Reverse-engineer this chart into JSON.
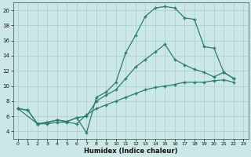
{
  "xlabel": "Humidex (Indice chaleur)",
  "bg_color": "#cce8e6",
  "line_color": "#2e7d6e",
  "grid_color": "#a8ceca",
  "xlim": [
    -0.5,
    23.5
  ],
  "ylim": [
    3,
    21
  ],
  "xticks": [
    0,
    1,
    2,
    3,
    4,
    5,
    6,
    7,
    8,
    9,
    10,
    11,
    12,
    13,
    14,
    15,
    16,
    17,
    18,
    19,
    20,
    21,
    22,
    23
  ],
  "yticks": [
    4,
    6,
    8,
    10,
    12,
    14,
    16,
    18,
    20
  ],
  "curve1_x": [
    0,
    1,
    2,
    3,
    4,
    5,
    6,
    7,
    8,
    9,
    10,
    11,
    12,
    13,
    14,
    15,
    16,
    17,
    18,
    19,
    20,
    21,
    22
  ],
  "curve1_y": [
    7.0,
    6.8,
    5.0,
    5.2,
    5.5,
    5.3,
    5.8,
    3.8,
    8.5,
    9.2,
    10.5,
    14.4,
    16.7,
    19.2,
    20.3,
    20.5,
    20.3,
    19.0,
    18.8,
    15.2,
    15.0,
    11.8,
    11.0
  ],
  "curve2_x": [
    0,
    2,
    3,
    4,
    5,
    6,
    7,
    8,
    9,
    10,
    11,
    12,
    13,
    14,
    15,
    16,
    17,
    18,
    19,
    20,
    21,
    22
  ],
  "curve2_y": [
    7.0,
    5.0,
    5.2,
    5.5,
    5.3,
    5.8,
    6.0,
    8.0,
    8.8,
    9.5,
    11.0,
    12.5,
    13.5,
    14.5,
    15.5,
    13.5,
    12.8,
    12.2,
    11.8,
    11.2,
    11.8,
    11.0
  ],
  "curve3_x": [
    0,
    1,
    2,
    3,
    4,
    5,
    6,
    7,
    8,
    9,
    10,
    11,
    12,
    13,
    14,
    15,
    16,
    17,
    18,
    19,
    20,
    21,
    22
  ],
  "curve3_y": [
    7.0,
    6.8,
    5.0,
    5.0,
    5.2,
    5.2,
    5.0,
    6.2,
    7.0,
    7.5,
    8.0,
    8.5,
    9.0,
    9.5,
    9.8,
    10.0,
    10.2,
    10.5,
    10.5,
    10.5,
    10.7,
    10.8,
    10.5
  ]
}
